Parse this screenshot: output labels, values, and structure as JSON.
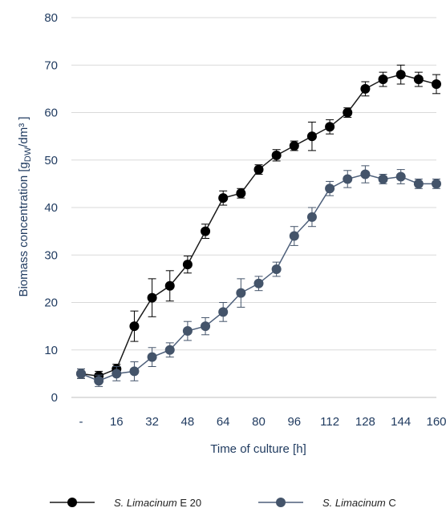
{
  "chart_data": {
    "type": "line",
    "title": "",
    "xlabel": "Time of culture [h]",
    "ylabel": "Biomass concentration [g_DW/dm³ ]",
    "ylabel_parts": {
      "pre": "Biomass concentration [g",
      "sub": "DW",
      "post": "/dm³ ]"
    },
    "x_tick_labels": [
      "-",
      "16",
      "32",
      "48",
      "64",
      "80",
      "96",
      "112",
      "128",
      "144",
      "160"
    ],
    "x_tick_values": [
      0,
      16,
      32,
      48,
      64,
      80,
      96,
      112,
      128,
      144,
      160
    ],
    "y_ticks": [
      0,
      10,
      20,
      30,
      40,
      50,
      60,
      70,
      80
    ],
    "xlim": [
      0,
      160
    ],
    "ylim": [
      0,
      80
    ],
    "grid": "horizontal",
    "legend": "bottom",
    "series": [
      {
        "name_italic": "S. Limacinum",
        "name_suffix": " E 20",
        "color": "#000000",
        "line_color": "#1a1a1a",
        "points": [
          {
            "x": 0,
            "y": 5,
            "err": 1.0
          },
          {
            "x": 8,
            "y": 4.5,
            "err": 1.0
          },
          {
            "x": 16,
            "y": 6,
            "err": 1.0
          },
          {
            "x": 24,
            "y": 15,
            "err": 3.2
          },
          {
            "x": 32,
            "y": 21,
            "err": 4.0
          },
          {
            "x": 40,
            "y": 23.5,
            "err": 3.2
          },
          {
            "x": 48,
            "y": 28,
            "err": 1.8
          },
          {
            "x": 56,
            "y": 35,
            "err": 1.5
          },
          {
            "x": 64,
            "y": 42,
            "err": 1.5
          },
          {
            "x": 72,
            "y": 43,
            "err": 1.0
          },
          {
            "x": 80,
            "y": 48,
            "err": 1.0
          },
          {
            "x": 88,
            "y": 51,
            "err": 1.2
          },
          {
            "x": 96,
            "y": 53,
            "err": 1.0
          },
          {
            "x": 104,
            "y": 55,
            "err": 3.0
          },
          {
            "x": 112,
            "y": 57,
            "err": 1.5
          },
          {
            "x": 120,
            "y": 60,
            "err": 1.0
          },
          {
            "x": 128,
            "y": 65,
            "err": 1.5
          },
          {
            "x": 136,
            "y": 67,
            "err": 1.5
          },
          {
            "x": 144,
            "y": 68,
            "err": 2.0
          },
          {
            "x": 152,
            "y": 67,
            "err": 1.5
          },
          {
            "x": 160,
            "y": 66,
            "err": 2.0
          }
        ]
      },
      {
        "name_italic": "S. Limacinum",
        "name_suffix": " C",
        "color": "#44546a",
        "line_color": "#4d5f7a",
        "points": [
          {
            "x": 0,
            "y": 5,
            "err": 1.0
          },
          {
            "x": 8,
            "y": 3.5,
            "err": 1.2
          },
          {
            "x": 16,
            "y": 5,
            "err": 1.5
          },
          {
            "x": 24,
            "y": 5.5,
            "err": 2.0
          },
          {
            "x": 32,
            "y": 8.5,
            "err": 2.0
          },
          {
            "x": 40,
            "y": 10,
            "err": 1.5
          },
          {
            "x": 48,
            "y": 14,
            "err": 2.0
          },
          {
            "x": 56,
            "y": 15,
            "err": 1.8
          },
          {
            "x": 64,
            "y": 18,
            "err": 2.0
          },
          {
            "x": 72,
            "y": 22,
            "err": 3.0
          },
          {
            "x": 80,
            "y": 24,
            "err": 1.5
          },
          {
            "x": 88,
            "y": 27,
            "err": 1.5
          },
          {
            "x": 96,
            "y": 34,
            "err": 2.0
          },
          {
            "x": 104,
            "y": 38,
            "err": 2.0
          },
          {
            "x": 112,
            "y": 44,
            "err": 1.5
          },
          {
            "x": 120,
            "y": 46,
            "err": 1.8
          },
          {
            "x": 128,
            "y": 47,
            "err": 1.8
          },
          {
            "x": 136,
            "y": 46,
            "err": 1.0
          },
          {
            "x": 144,
            "y": 46.5,
            "err": 1.5
          },
          {
            "x": 152,
            "y": 45,
            "err": 1.0
          },
          {
            "x": 160,
            "y": 45,
            "err": 1.0
          }
        ]
      }
    ]
  }
}
